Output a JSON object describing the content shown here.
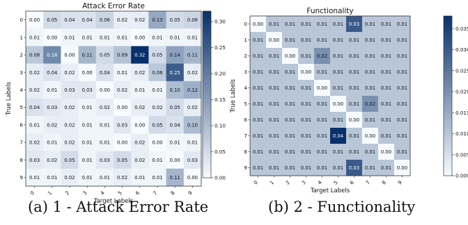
{
  "chart_data": [
    {
      "type": "heatmap",
      "title": "Attack Error Rate",
      "xlabel": "Target Labels",
      "ylabel": "True Labels",
      "x_categories": [
        "0",
        "1",
        "2",
        "3",
        "4",
        "5",
        "6",
        "7",
        "8",
        "9"
      ],
      "y_categories": [
        "0",
        "1",
        "2",
        "3",
        "4",
        "5",
        "6",
        "7",
        "8",
        "9"
      ],
      "values": [
        [
          0.0,
          0.05,
          0.04,
          0.04,
          0.06,
          0.02,
          0.02,
          0.13,
          0.05,
          0.06
        ],
        [
          0.01,
          0.0,
          0.01,
          0.01,
          0.01,
          0.01,
          0.0,
          0.01,
          0.01,
          0.01
        ],
        [
          0.08,
          0.18,
          0.0,
          0.11,
          0.05,
          0.09,
          0.32,
          0.05,
          0.14,
          0.11
        ],
        [
          0.02,
          0.04,
          0.02,
          0.0,
          0.04,
          0.01,
          0.02,
          0.08,
          0.25,
          0.02
        ],
        [
          0.02,
          0.01,
          0.03,
          0.03,
          0.0,
          0.02,
          0.01,
          0.01,
          0.1,
          0.12
        ],
        [
          0.04,
          0.03,
          0.02,
          0.01,
          0.02,
          0.0,
          0.02,
          0.02,
          0.05,
          0.02
        ],
        [
          0.01,
          0.02,
          0.02,
          0.01,
          0.01,
          0.03,
          0.0,
          0.05,
          0.04,
          0.1
        ],
        [
          0.02,
          0.01,
          0.02,
          0.01,
          0.01,
          0.0,
          0.02,
          0.0,
          0.01,
          0.01
        ],
        [
          0.03,
          0.02,
          0.05,
          0.01,
          0.03,
          0.05,
          0.02,
          0.01,
          0.0,
          0.03
        ],
        [
          0.01,
          0.01,
          0.02,
          0.01,
          0.01,
          0.02,
          0.01,
          0.01,
          0.11,
          0.0
        ]
      ],
      "color_range": [
        0,
        0.32
      ],
      "colorbar_ticks": [
        "0.00",
        "0.05",
        "0.10",
        "0.15",
        "0.20",
        "0.25",
        "0.30"
      ],
      "colormap": [
        "#f7fbff",
        "#08306b"
      ],
      "caption": "(a) 1 - Attack Error Rate"
    },
    {
      "type": "heatmap",
      "title": "Functionality",
      "xlabel": "Target Labels",
      "ylabel": "True Labels",
      "x_categories": [
        "0",
        "1",
        "2",
        "3",
        "4",
        "5",
        "6",
        "7",
        "8",
        "9"
      ],
      "y_categories": [
        "0",
        "1",
        "2",
        "3",
        "4",
        "5",
        "6",
        "7",
        "8",
        "9"
      ],
      "values": [
        [
          0.0,
          0.01,
          0.01,
          0.01,
          0.01,
          0.01,
          0.03,
          0.01,
          0.01,
          0.01
        ],
        [
          0.01,
          0.0,
          0.01,
          0.01,
          0.01,
          0.01,
          0.01,
          0.01,
          0.01,
          0.01
        ],
        [
          0.01,
          0.01,
          0.0,
          0.01,
          0.02,
          0.01,
          0.01,
          0.01,
          0.01,
          0.01
        ],
        [
          0.01,
          0.01,
          0.01,
          0.0,
          0.01,
          0.01,
          0.01,
          0.01,
          0.01,
          0.01
        ],
        [
          0.01,
          0.01,
          0.01,
          0.01,
          0.0,
          0.01,
          0.01,
          0.01,
          0.01,
          0.01
        ],
        [
          0.01,
          0.01,
          0.01,
          0.01,
          0.01,
          0.0,
          0.01,
          0.02,
          0.01,
          0.01
        ],
        [
          0.01,
          0.01,
          0.01,
          0.01,
          0.01,
          0.01,
          0.0,
          0.01,
          0.01,
          0.01
        ],
        [
          0.01,
          0.01,
          0.01,
          0.01,
          0.01,
          0.04,
          0.01,
          0.0,
          0.01,
          0.01
        ],
        [
          0.01,
          0.01,
          0.01,
          0.01,
          0.01,
          0.01,
          0.01,
          0.01,
          0.0,
          0.01
        ],
        [
          0.01,
          0.01,
          0.01,
          0.01,
          0.01,
          0.01,
          0.03,
          0.01,
          0.01,
          0.0
        ]
      ],
      "color_range": [
        0,
        0.038
      ],
      "colorbar_ticks": [
        "0.000",
        "0.005",
        "0.010",
        "0.015",
        "0.020",
        "0.025",
        "0.030",
        "0.035"
      ],
      "colormap": [
        "#f7fbff",
        "#08306b"
      ],
      "caption": "(b) 2 - Functionality"
    }
  ]
}
